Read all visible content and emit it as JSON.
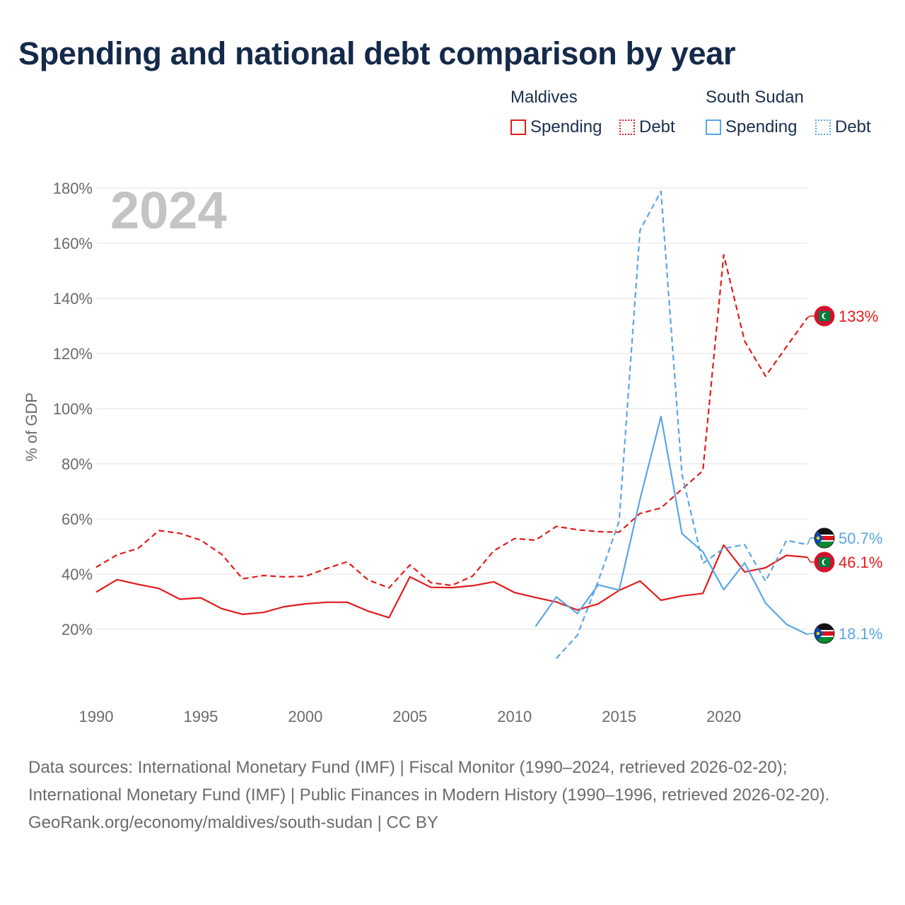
{
  "title": "Spending and national debt comparison by year",
  "legend": {
    "groups": [
      {
        "country": "Maldives",
        "items": [
          {
            "label": "Spending",
            "style": "solid"
          },
          {
            "label": "Debt",
            "style": "dashed"
          }
        ],
        "color": "#e31b1b"
      },
      {
        "country": "South Sudan",
        "items": [
          {
            "label": "Spending",
            "style": "solid"
          },
          {
            "label": "Debt",
            "style": "dashed"
          }
        ],
        "color": "#5aa6e6"
      }
    ]
  },
  "chart_data": {
    "type": "line",
    "year_label": "2024",
    "ylabel": "% of GDP",
    "xlim": [
      1990,
      2024
    ],
    "ylim": [
      0,
      180
    ],
    "y_ticks": [
      20,
      40,
      60,
      80,
      100,
      120,
      140,
      160,
      180
    ],
    "y_tick_labels": [
      "20%",
      "40%",
      "60%",
      "80%",
      "100%",
      "120%",
      "140%",
      "160%",
      "180%"
    ],
    "x_ticks": [
      1990,
      1995,
      2000,
      2005,
      2010,
      2015,
      2020
    ],
    "x_tick_labels": [
      "1990",
      "1995",
      "2000",
      "2005",
      "2010",
      "2015",
      "2020"
    ],
    "series": [
      {
        "name": "Maldives Spending",
        "country": "Maldives",
        "metric": "Spending",
        "color": "#e31b1b",
        "style": "solid",
        "x": [
          1990,
          1991,
          1992,
          1993,
          1994,
          1995,
          1996,
          1997,
          1998,
          1999,
          2000,
          2001,
          2002,
          2003,
          2004,
          2005,
          2006,
          2007,
          2008,
          2009,
          2010,
          2011,
          2012,
          2013,
          2014,
          2015,
          2016,
          2017,
          2018,
          2019,
          2020,
          2021,
          2022,
          2023,
          2024
        ],
        "values": [
          33.5,
          38,
          36.3,
          34.8,
          30.9,
          31.4,
          27.5,
          25.4,
          26.1,
          28.2,
          29.2,
          29.8,
          29.8,
          26.6,
          24.2,
          39,
          35.2,
          35.1,
          35.8,
          37.2,
          33.3,
          31.5,
          29.9,
          27,
          29.2,
          34.1,
          37.5,
          30.5,
          32.1,
          33,
          50.5,
          40.8,
          42.3,
          46.8,
          46.1
        ],
        "end_label": "46.1%"
      },
      {
        "name": "Maldives Debt",
        "country": "Maldives",
        "metric": "Debt",
        "color": "#e31b1b",
        "style": "dashed",
        "x": [
          1990,
          1991,
          1992,
          1993,
          1994,
          1995,
          1996,
          1997,
          1998,
          1999,
          2000,
          2001,
          2002,
          2003,
          2004,
          2005,
          2006,
          2007,
          2008,
          2009,
          2010,
          2011,
          2012,
          2013,
          2014,
          2015,
          2016,
          2017,
          2018,
          2019,
          2020,
          2021,
          2022,
          2023,
          2024
        ],
        "values": [
          42.5,
          47,
          49.3,
          55.8,
          54.8,
          52.3,
          47.2,
          38.3,
          39.5,
          39,
          39.2,
          42,
          44.5,
          37.9,
          35,
          43.3,
          36.9,
          35.9,
          39.3,
          48.4,
          52.9,
          52.3,
          57.3,
          56.1,
          55.4,
          55.2,
          62,
          64,
          70.8,
          77.5,
          155.8,
          124.5,
          111.8,
          122.5,
          133
        ]
      },
      {
        "name": "South Sudan Spending",
        "country": "South Sudan",
        "metric": "Spending",
        "color": "#5aa6e6",
        "style": "solid",
        "x": [
          2011,
          2012,
          2013,
          2014,
          2015,
          2016,
          2017,
          2018,
          2019,
          2020,
          2021,
          2022,
          2023,
          2024
        ],
        "values": [
          21,
          31.7,
          25.7,
          36.1,
          34.2,
          67.2,
          97.2,
          54.7,
          48.1,
          34.3,
          44.1,
          29.5,
          21.8,
          18.1
        ],
        "end_label": "18.1%"
      },
      {
        "name": "South Sudan Debt",
        "country": "South Sudan",
        "metric": "Debt",
        "color": "#5aa6e6",
        "style": "dashed",
        "x": [
          2012,
          2013,
          2014,
          2015,
          2016,
          2017,
          2018,
          2019,
          2020,
          2021,
          2022,
          2023,
          2024
        ],
        "values": [
          9.4,
          17.8,
          37.5,
          59.2,
          164.8,
          178.8,
          76.2,
          43.9,
          49.3,
          50.7,
          37.4,
          52.2,
          50.7
        ],
        "end_label": "50.7%"
      },
      {
        "name": "Maldives Debt label",
        "country": "Maldives",
        "metric": "Debt",
        "end_label": "133%"
      }
    ],
    "end_labels": [
      {
        "country": "Maldives",
        "metric": "Debt",
        "text": "133%",
        "value": 133,
        "color": "#e31b1b",
        "flag": "maldives"
      },
      {
        "country": "South Sudan",
        "metric": "Debt",
        "text": "50.7%",
        "value": 50.7,
        "color": "#5aa6e6",
        "flag": "south-sudan"
      },
      {
        "country": "Maldives",
        "metric": "Spending",
        "text": "46.1%",
        "value": 46.1,
        "color": "#e31b1b",
        "flag": "maldives"
      },
      {
        "country": "South Sudan",
        "metric": "Spending",
        "text": "18.1%",
        "value": 18.1,
        "color": "#5aa6e6",
        "flag": "south-sudan"
      }
    ]
  },
  "sources": {
    "line1": "Data sources: International Monetary Fund (IMF) | Fiscal Monitor (1990–2024, retrieved 2026-02-20); International Monetary Fund (IMF) | Public Finances in Modern History (1990–1996, retrieved 2026-02-20).",
    "line2": "GeoRank.org/economy/maldives/south-sudan | CC BY"
  },
  "colors": {
    "maldives": "#e31b1b",
    "south_sudan": "#5aa6e6",
    "grid": "#e6e6e6",
    "axis_text": "#6b6b6b",
    "year_watermark": "#c4c4c4"
  }
}
